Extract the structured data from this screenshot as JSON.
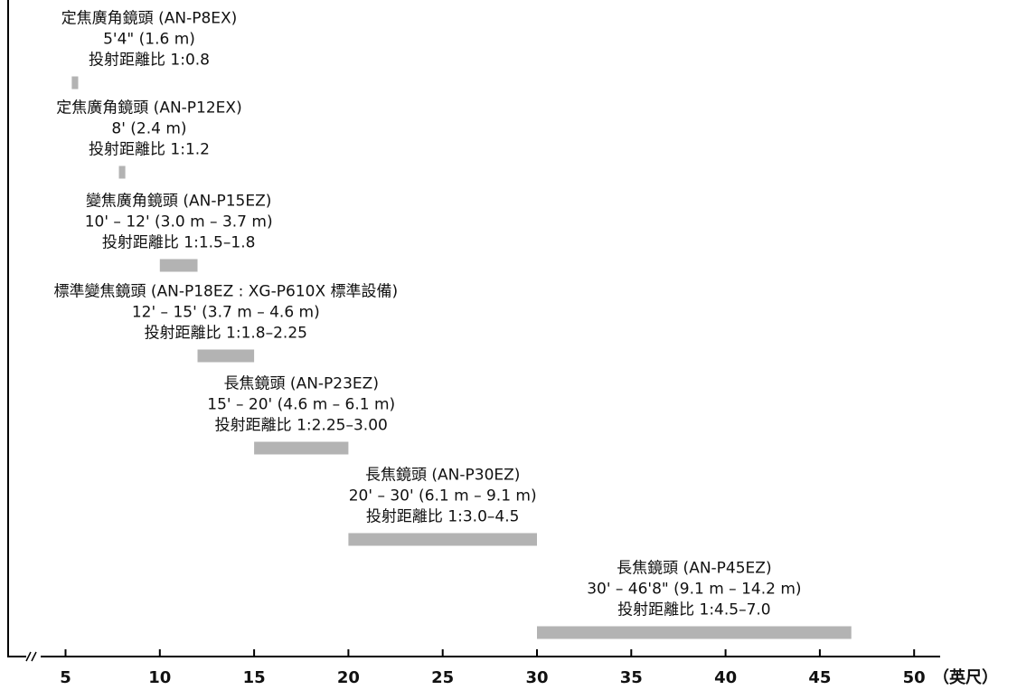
{
  "chart_data": {
    "type": "bar",
    "x_unit_label": "（英尺）",
    "xlim": [
      2.5,
      51
    ],
    "x_ticks": [
      5,
      10,
      15,
      20,
      25,
      30,
      35,
      40,
      45,
      50
    ],
    "axis_break": true,
    "bar_color": "#b3b3b3",
    "series": [
      {
        "lens": "定焦廣角鏡頭 (AN-P8EX)",
        "distance": "5'4\" (1.6 m)",
        "ratio": "投射距離比 1:0.8",
        "start": 5.33,
        "end": 5.67
      },
      {
        "lens": "定焦廣角鏡頭 (AN-P12EX)",
        "distance": "8' (2.4 m)",
        "ratio": "投射距離比 1:1.2",
        "start": 7.83,
        "end": 8.17
      },
      {
        "lens": "變焦廣角鏡頭 (AN-P15EZ)",
        "distance": "10' – 12' (3.0 m – 3.7 m)",
        "ratio": "投射距離比 1:1.5–1.8",
        "start": 10,
        "end": 12
      },
      {
        "lens": "標準變焦鏡頭 (AN-P18EZ : XG-P610X 標準設備)",
        "distance": "12' – 15' (3.7 m – 4.6 m)",
        "ratio": "投射距離比 1:1.8–2.25",
        "start": 12,
        "end": 15
      },
      {
        "lens": "長焦鏡頭 (AN-P23EZ)",
        "distance": "15' – 20' (4.6 m – 6.1 m)",
        "ratio": "投射距離比 1:2.25–3.00",
        "start": 15,
        "end": 20
      },
      {
        "lens": "長焦鏡頭 (AN-P30EZ)",
        "distance": "20' – 30' (6.1 m – 9.1 m)",
        "ratio": "投射距離比 1:3.0–4.5",
        "start": 20,
        "end": 30
      },
      {
        "lens": "長焦鏡頭 (AN-P45EZ)",
        "distance": "30' – 46'8\" (9.1 m – 14.2 m)",
        "ratio": "投射距離比 1:4.5–7.0",
        "start": 30,
        "end": 46.67
      }
    ]
  }
}
